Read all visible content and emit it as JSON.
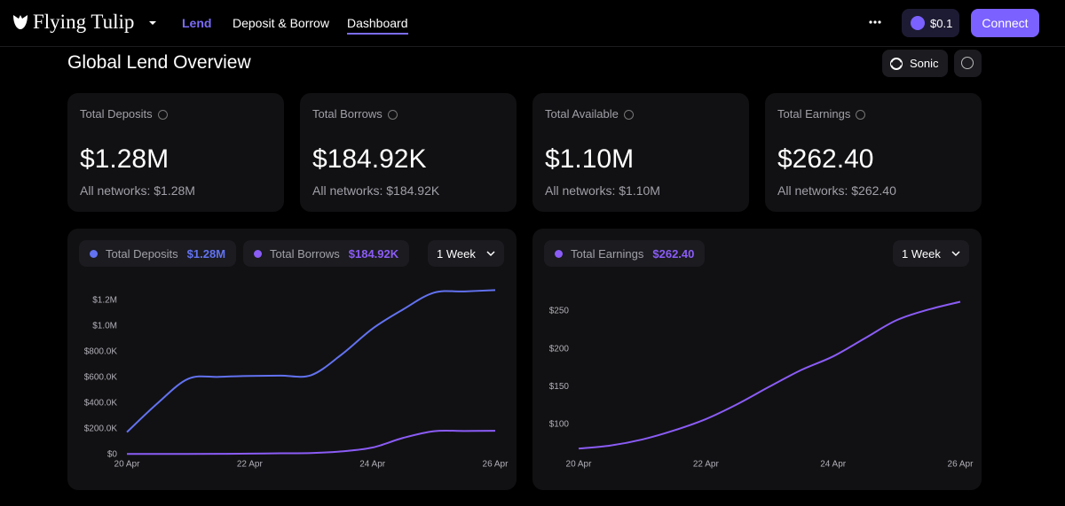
{
  "nav": {
    "brand": "Flying Tulip",
    "links": [
      "Lend",
      "Deposit & Borrow",
      "Dashboard"
    ],
    "token_price": "$0.1",
    "connect": "Connect"
  },
  "page": {
    "title": "Global Lend Overview",
    "network": "Sonic"
  },
  "stats": [
    {
      "label": "Total Deposits",
      "value": "$1.28M",
      "sub": "All networks: $1.28M"
    },
    {
      "label": "Total Borrows",
      "value": "$184.92K",
      "sub": "All networks: $184.92K"
    },
    {
      "label": "Total Available",
      "value": "$1.10M",
      "sub": "All networks: $1.10M"
    },
    {
      "label": "Total Earnings",
      "value": "$262.40",
      "sub": "All networks: $262.40"
    }
  ],
  "chart_data": [
    {
      "type": "line",
      "range": "1 Week",
      "categories": [
        "20 Apr",
        null,
        null,
        null,
        "22 Apr",
        null,
        null,
        null,
        "24 Apr",
        null,
        null,
        null,
        "26 Apr"
      ],
      "series": [
        {
          "name": "Total Deposits",
          "summary": "$1.28M",
          "color": "#6272f0",
          "values": [
            175000,
            400000,
            590000,
            605000,
            612000,
            615000,
            618000,
            780000,
            980000,
            1130000,
            1260000,
            1270000,
            1280000
          ]
        },
        {
          "name": "Total Borrows",
          "summary": "$184.92K",
          "color": "#8b5cf6",
          "values": [
            5000,
            5000,
            5000,
            6000,
            8000,
            10000,
            12000,
            25000,
            55000,
            130000,
            182000,
            184000,
            184920
          ]
        }
      ],
      "ylim": [
        0,
        1300000
      ],
      "yticks": [
        {
          "value": 0,
          "label": "$0"
        },
        {
          "value": 200000,
          "label": "$200.0K"
        },
        {
          "value": 400000,
          "label": "$400.0K"
        },
        {
          "value": 600000,
          "label": "$600.0K"
        },
        {
          "value": 800000,
          "label": "$800.0K"
        },
        {
          "value": 1000000,
          "label": "$1.0M"
        },
        {
          "value": 1200000,
          "label": "$1.2M"
        }
      ]
    },
    {
      "type": "line",
      "range": "1 Week",
      "categories": [
        "20 Apr",
        null,
        null,
        null,
        "22 Apr",
        null,
        null,
        null,
        "24 Apr",
        null,
        null,
        null,
        "26 Apr"
      ],
      "series": [
        {
          "name": "Total Earnings",
          "summary": "$262.40",
          "color": "#8b5cf6",
          "values": [
            68,
            72,
            80,
            92,
            107,
            127,
            150,
            172,
            190,
            214,
            238,
            252,
            262.4
          ]
        }
      ],
      "ylim": [
        60,
        270
      ],
      "yticks": [
        {
          "value": 100,
          "label": "$100"
        },
        {
          "value": 150,
          "label": "$150"
        },
        {
          "value": 200,
          "label": "$200"
        },
        {
          "value": 250,
          "label": "$250"
        }
      ]
    }
  ]
}
